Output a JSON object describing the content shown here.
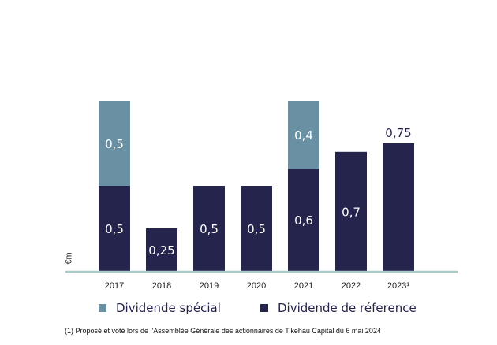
{
  "chart_data": {
    "type": "bar",
    "stacked": true,
    "categories": [
      "2017",
      "2018",
      "2019",
      "2020",
      "2021",
      "2022",
      "2023¹"
    ],
    "series": [
      {
        "name": "Dividende de réference",
        "color": "#25244c",
        "values": [
          0.5,
          0.25,
          0.5,
          0.5,
          0.6,
          0.7,
          0.75
        ],
        "labels": [
          "0,5",
          "0,25",
          "0,5",
          "0,5",
          "0,6",
          "0,7",
          "0,75"
        ]
      },
      {
        "name": "Dividende spécial",
        "color": "#6a90a4",
        "values": [
          0.5,
          null,
          null,
          null,
          0.4,
          null,
          null
        ],
        "labels": [
          "0,5",
          "",
          "",
          "",
          "0,4",
          "",
          ""
        ]
      }
    ],
    "ylabel": "€m",
    "grid": false,
    "legend": "bottom",
    "axis_color": "#a9cbc7"
  },
  "legend": {
    "special": "Dividende spécial",
    "reference": "Dividende de réference"
  },
  "footnote": "(1) Proposé et voté lors de l'Assemblée Générale des actionnaires de Tikehau Capital du 6 mai 2024"
}
